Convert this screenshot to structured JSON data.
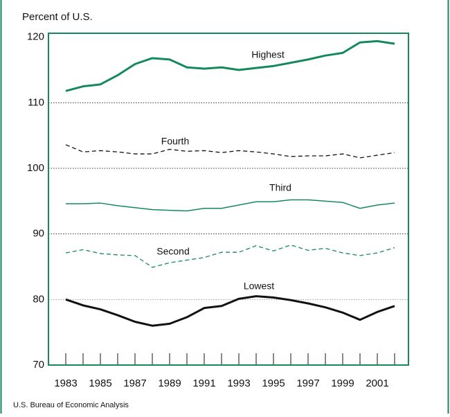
{
  "chart_data": {
    "type": "line",
    "y_axis_label": "Percent of U.S.",
    "source": "U.S. Bureau of Economic Analysis",
    "x": [
      1983,
      1984,
      1985,
      1986,
      1987,
      1988,
      1989,
      1990,
      1991,
      1992,
      1993,
      1994,
      1995,
      1996,
      1997,
      1998,
      1999,
      2000,
      2001,
      2002
    ],
    "xlim": [
      1982,
      2002.8
    ],
    "xticks": [
      1983,
      1985,
      1987,
      1989,
      1991,
      1993,
      1995,
      1997,
      1999,
      2001
    ],
    "ylim": [
      70,
      120.6
    ],
    "yticks": [
      70,
      80,
      90,
      100,
      110,
      120
    ],
    "grid": true,
    "series": [
      {
        "name": "Highest",
        "color": "#148a5c",
        "style": "solid",
        "width": 3,
        "values": [
          111.8,
          112.5,
          112.8,
          114.2,
          115.9,
          116.8,
          116.6,
          115.4,
          115.2,
          115.4,
          115.0,
          115.3,
          115.6,
          116.1,
          116.6,
          117.2,
          117.6,
          119.2,
          119.4,
          119.0
        ]
      },
      {
        "name": "Fourth",
        "color": "#111111",
        "style": "dashed",
        "width": 1.3,
        "values": [
          103.6,
          102.5,
          102.7,
          102.5,
          102.2,
          102.2,
          102.9,
          102.6,
          102.7,
          102.4,
          102.7,
          102.5,
          102.2,
          101.8,
          101.9,
          101.9,
          102.2,
          101.6,
          102.0,
          102.4
        ]
      },
      {
        "name": "Third",
        "color": "#148a5c",
        "style": "solid",
        "width": 1.5,
        "values": [
          94.6,
          94.6,
          94.7,
          94.3,
          94.0,
          93.7,
          93.6,
          93.5,
          93.9,
          93.9,
          94.4,
          94.9,
          94.9,
          95.2,
          95.2,
          95.0,
          94.8,
          93.9,
          94.4,
          94.7
        ]
      },
      {
        "name": "Second",
        "color": "#148a5c",
        "style": "dashed",
        "width": 1.3,
        "values": [
          87.1,
          87.6,
          87.0,
          86.8,
          86.7,
          84.9,
          85.6,
          86.0,
          86.4,
          87.2,
          87.2,
          88.2,
          87.4,
          88.3,
          87.5,
          87.8,
          87.1,
          86.7,
          87.1,
          87.9
        ]
      },
      {
        "name": "Lowest",
        "color": "#111111",
        "style": "solid",
        "width": 3,
        "values": [
          80.0,
          79.1,
          78.5,
          77.6,
          76.6,
          76.0,
          76.3,
          77.3,
          78.7,
          79.0,
          80.1,
          80.5,
          80.3,
          79.9,
          79.4,
          78.8,
          78.0,
          76.9,
          78.1,
          79.0
        ]
      }
    ]
  }
}
